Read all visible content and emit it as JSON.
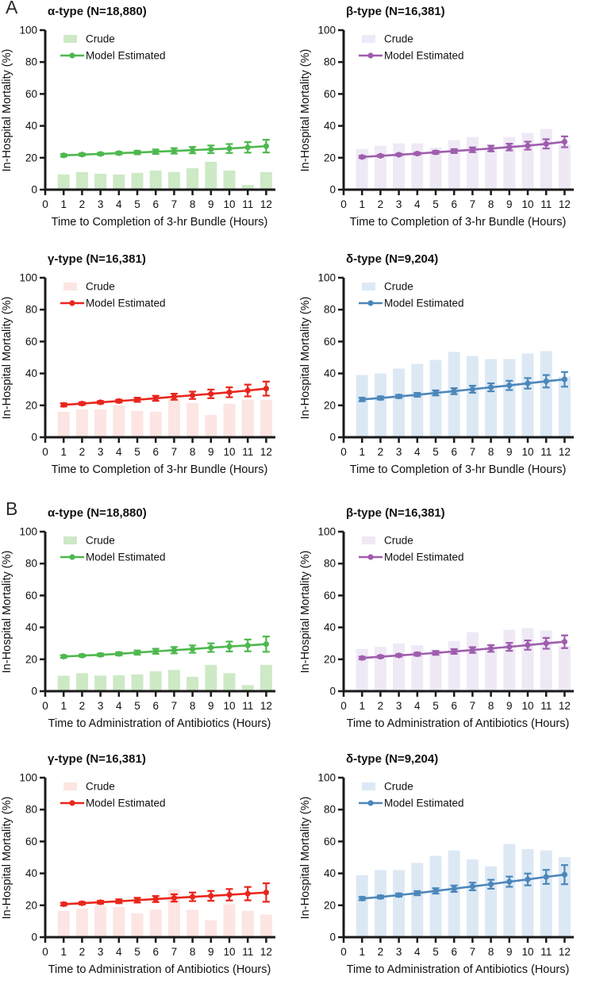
{
  "figure": {
    "panels": [
      {
        "label": "A",
        "xlabel": "Time to Completion of 3-hr Bundle (Hours)"
      },
      {
        "label": "B",
        "xlabel": "Time to Administration of Antibiotics (Hours)"
      }
    ],
    "ylabel": "In-Hospital Mortality (%)",
    "legend": {
      "crude": "Crude",
      "model": "Model Estimated"
    },
    "axis_color": "#1a1a1a"
  },
  "chart_data": [
    {
      "type": "bar+line",
      "panel": "A",
      "title": "α-type (N=18,880)",
      "xlabel": "Time to Completion of 3-hr Bundle (Hours)",
      "ylabel": "In-Hospital Mortality (%)",
      "legend": [
        "Crude",
        "Model Estimated"
      ],
      "colors": {
        "line": "#4eb84e",
        "fill": "#cde9c6"
      },
      "x": [
        1,
        2,
        3,
        4,
        5,
        6,
        7,
        8,
        9,
        10,
        11,
        12
      ],
      "xticks": [
        0,
        1,
        2,
        3,
        4,
        5,
        6,
        7,
        8,
        9,
        10,
        11,
        12
      ],
      "yticks": [
        0,
        20,
        40,
        60,
        80,
        100
      ],
      "ylim": [
        0,
        100
      ],
      "crude": [
        9.5,
        11,
        10,
        9.5,
        10.5,
        12,
        11,
        13.5,
        17.5,
        12,
        3,
        11
      ],
      "model": [
        21.5,
        22.0,
        22.4,
        22.9,
        23.3,
        23.8,
        24.3,
        24.8,
        25.3,
        25.8,
        26.5,
        27.3
      ],
      "err": [
        0.8,
        0.7,
        0.7,
        0.8,
        1.1,
        1.4,
        1.7,
        2.0,
        2.4,
        2.8,
        3.3,
        4.0
      ]
    },
    {
      "type": "bar+line",
      "panel": "A",
      "title": "β-type (N=16,381)",
      "xlabel": "Time to Completion of 3-hr Bundle (Hours)",
      "ylabel": "In-Hospital Mortality (%)",
      "legend": [
        "Crude",
        "Model Estimated"
      ],
      "colors": {
        "line": "#9f5dad",
        "fill": "#efe9f6"
      },
      "x": [
        1,
        2,
        3,
        4,
        5,
        6,
        7,
        8,
        9,
        10,
        11,
        12
      ],
      "xticks": [
        0,
        1,
        2,
        3,
        4,
        5,
        6,
        7,
        8,
        9,
        10,
        11,
        12
      ],
      "yticks": [
        0,
        20,
        40,
        60,
        80,
        100
      ],
      "ylim": [
        0,
        100
      ],
      "crude": [
        25.5,
        27.5,
        29,
        29,
        26.5,
        31,
        33,
        26,
        33,
        35.5,
        38,
        28.5
      ],
      "model": [
        20.5,
        21.2,
        21.9,
        22.6,
        23.4,
        24.2,
        25.0,
        25.8,
        26.7,
        27.6,
        28.7,
        30.0
      ],
      "err": [
        0.7,
        0.6,
        0.6,
        0.7,
        0.9,
        1.2,
        1.5,
        1.8,
        2.1,
        2.5,
        2.9,
        3.4
      ]
    },
    {
      "type": "bar+line",
      "panel": "A",
      "title": "γ-type (N=16,381)",
      "xlabel": "Time to Completion of 3-hr Bundle (Hours)",
      "ylabel": "In-Hospital Mortality (%)",
      "legend": [
        "Crude",
        "Model Estimated"
      ],
      "colors": {
        "line": "#e9261c",
        "fill": "#fce5e2"
      },
      "x": [
        1,
        2,
        3,
        4,
        5,
        6,
        7,
        8,
        9,
        10,
        11,
        12
      ],
      "xticks": [
        0,
        1,
        2,
        3,
        4,
        5,
        6,
        7,
        8,
        9,
        10,
        11,
        12
      ],
      "yticks": [
        0,
        20,
        40,
        60,
        80,
        100
      ],
      "ylim": [
        0,
        100
      ],
      "crude": [
        16,
        17.5,
        17.5,
        20,
        16.5,
        16,
        23.5,
        21.5,
        14,
        21,
        23.5,
        23.5
      ],
      "model": [
        20.3,
        21.1,
        21.9,
        22.7,
        23.5,
        24.4,
        25.4,
        26.3,
        27.2,
        28.2,
        29.3,
        30.5
      ],
      "err": [
        1.0,
        0.8,
        0.8,
        0.9,
        1.3,
        1.6,
        1.9,
        2.3,
        2.7,
        3.1,
        3.7,
        4.4
      ]
    },
    {
      "type": "bar+line",
      "panel": "A",
      "title": "δ-type (N=9,204)",
      "xlabel": "Time to Completion of 3-hr Bundle (Hours)",
      "ylabel": "In-Hospital Mortality (%)",
      "legend": [
        "Crude",
        "Model Estimated"
      ],
      "colors": {
        "line": "#4c87ba",
        "fill": "#dce9f4"
      },
      "x": [
        1,
        2,
        3,
        4,
        5,
        6,
        7,
        8,
        9,
        10,
        11,
        12
      ],
      "xticks": [
        0,
        1,
        2,
        3,
        4,
        5,
        6,
        7,
        8,
        9,
        10,
        11,
        12
      ],
      "yticks": [
        0,
        20,
        40,
        60,
        80,
        100
      ],
      "ylim": [
        0,
        100
      ],
      "crude": [
        39,
        40,
        43,
        46,
        48.5,
        53.5,
        51,
        49,
        49,
        52.5,
        54,
        38
      ],
      "model": [
        23.7,
        24.6,
        25.6,
        26.6,
        27.8,
        28.9,
        30.1,
        31.3,
        32.5,
        33.8,
        35.1,
        36.3
      ],
      "err": [
        1.1,
        1.0,
        1.0,
        1.2,
        1.6,
        1.9,
        2.2,
        2.5,
        2.9,
        3.3,
        3.9,
        4.6
      ]
    },
    {
      "type": "bar+line",
      "panel": "B",
      "title": "α-type (N=18,880)",
      "xlabel": "Time to Administration of Antibiotics (Hours)",
      "ylabel": "In-Hospital Mortality (%)",
      "legend": [
        "Crude",
        "Model Estimated"
      ],
      "colors": {
        "line": "#4eb84e",
        "fill": "#cde9c6"
      },
      "x": [
        1,
        2,
        3,
        4,
        5,
        6,
        7,
        8,
        9,
        10,
        11,
        12
      ],
      "xticks": [
        0,
        1,
        2,
        3,
        4,
        5,
        6,
        7,
        8,
        9,
        10,
        11,
        12
      ],
      "yticks": [
        0,
        20,
        40,
        60,
        80,
        100
      ],
      "ylim": [
        0,
        100
      ],
      "crude": [
        9.7,
        11.3,
        9.8,
        10,
        10.5,
        12.5,
        13.3,
        9,
        16.5,
        11.3,
        3.8,
        16.5
      ],
      "model": [
        21.7,
        22.3,
        22.8,
        23.4,
        24.2,
        25.0,
        25.7,
        26.4,
        27.3,
        28.0,
        28.7,
        29.5
      ],
      "err": [
        0.8,
        0.7,
        0.8,
        1.0,
        1.3,
        1.6,
        2.0,
        2.3,
        2.7,
        3.1,
        3.7,
        4.8
      ]
    },
    {
      "type": "bar+line",
      "panel": "B",
      "title": "β-type (N=16,381)",
      "xlabel": "Time to Administration of Antibiotics (Hours)",
      "ylabel": "In-Hospital Mortality (%)",
      "legend": [
        "Crude",
        "Model Estimated"
      ],
      "colors": {
        "line": "#9f5dad",
        "fill": "#efe9f6"
      },
      "x": [
        1,
        2,
        3,
        4,
        5,
        6,
        7,
        8,
        9,
        10,
        11,
        12
      ],
      "xticks": [
        0,
        1,
        2,
        3,
        4,
        5,
        6,
        7,
        8,
        9,
        10,
        11,
        12
      ],
      "yticks": [
        0,
        20,
        40,
        60,
        80,
        100
      ],
      "ylim": [
        0,
        100
      ],
      "crude": [
        26.5,
        27.8,
        29.9,
        28.8,
        26,
        31.5,
        37,
        28,
        38.5,
        39.5,
        38,
        28.5
      ],
      "model": [
        20.8,
        21.6,
        22.4,
        23.2,
        24.0,
        24.9,
        25.8,
        26.8,
        27.8,
        28.9,
        30.0,
        31.0
      ],
      "err": [
        0.8,
        0.7,
        0.8,
        1.0,
        1.2,
        1.5,
        1.8,
        2.1,
        2.5,
        2.9,
        3.4,
        4.0
      ]
    },
    {
      "type": "bar+line",
      "panel": "B",
      "title": "γ-type (N=16,381)",
      "xlabel": "Time to Administration of Antibiotics (Hours)",
      "ylabel": "In-Hospital Mortality (%)",
      "legend": [
        "Crude",
        "Model Estimated"
      ],
      "colors": {
        "line": "#e9261c",
        "fill": "#fce5e2"
      },
      "x": [
        1,
        2,
        3,
        4,
        5,
        6,
        7,
        8,
        9,
        10,
        11,
        12
      ],
      "xticks": [
        0,
        1,
        2,
        3,
        4,
        5,
        6,
        7,
        8,
        9,
        10,
        11,
        12
      ],
      "yticks": [
        0,
        20,
        40,
        60,
        80,
        100
      ],
      "ylim": [
        0,
        100
      ],
      "crude": [
        16.4,
        17.9,
        19.4,
        18.9,
        14.9,
        17.2,
        29.9,
        17.2,
        10.6,
        20.6,
        16.6,
        14.2
      ],
      "model": [
        20.7,
        21.3,
        21.9,
        22.5,
        23.2,
        23.9,
        24.6,
        25.3,
        25.9,
        26.6,
        27.3,
        28.0
      ],
      "err": [
        0.9,
        0.8,
        0.9,
        1.2,
        1.5,
        1.9,
        2.3,
        2.7,
        3.1,
        3.6,
        4.2,
        5.8
      ]
    },
    {
      "type": "bar+line",
      "panel": "B",
      "title": "δ-type (N=9,204)",
      "xlabel": "Time to Administration of Antibiotics (Hours)",
      "ylabel": "In-Hospital Mortality (%)",
      "legend": [
        "Crude",
        "Model Estimated"
      ],
      "colors": {
        "line": "#4c87ba",
        "fill": "#dce9f4"
      },
      "x": [
        1,
        2,
        3,
        4,
        5,
        6,
        7,
        8,
        9,
        10,
        11,
        12
      ],
      "xticks": [
        0,
        1,
        2,
        3,
        4,
        5,
        6,
        7,
        8,
        9,
        10,
        11,
        12
      ],
      "yticks": [
        0,
        20,
        40,
        60,
        80,
        100
      ],
      "ylim": [
        0,
        100
      ],
      "crude": [
        38.9,
        42.1,
        42.1,
        46.6,
        51,
        54.4,
        48.8,
        44.4,
        58.4,
        55.2,
        54.4,
        50.2
      ],
      "model": [
        24.2,
        25.2,
        26.4,
        27.6,
        29.0,
        30.4,
        31.8,
        33.2,
        34.8,
        36.2,
        37.8,
        39.2
      ],
      "err": [
        1.0,
        0.9,
        1.0,
        1.3,
        1.7,
        2.0,
        2.4,
        2.8,
        3.2,
        3.7,
        4.4,
        6.0
      ]
    }
  ]
}
